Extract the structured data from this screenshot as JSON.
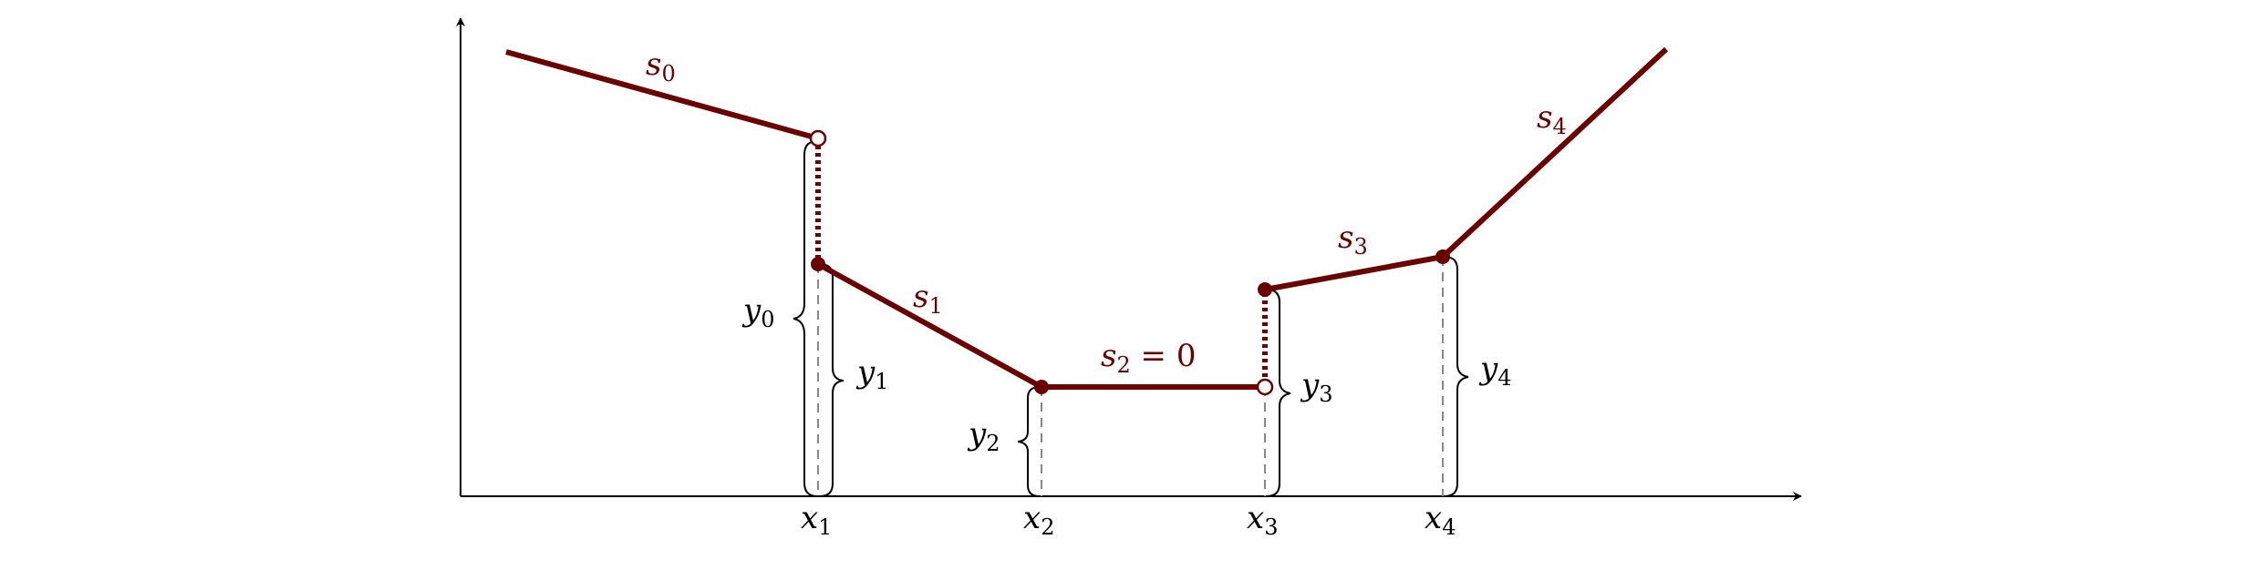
{
  "colors": {
    "curve": "#6b0000",
    "axis": "#000000",
    "guide": "#888888",
    "background": "#ffffff"
  },
  "slope_labels": {
    "s0": {
      "base": "s",
      "sub": "0"
    },
    "s1": {
      "base": "s",
      "sub": "1"
    },
    "s2": {
      "base": "s",
      "sub": "2",
      "suffix": " = 0"
    },
    "s3": {
      "base": "s",
      "sub": "3"
    },
    "s4": {
      "base": "s",
      "sub": "4"
    }
  },
  "x_labels": {
    "x1": {
      "base": "x",
      "sub": "1"
    },
    "x2": {
      "base": "x",
      "sub": "2"
    },
    "x3": {
      "base": "x",
      "sub": "3"
    },
    "x4": {
      "base": "x",
      "sub": "4"
    }
  },
  "y_labels": {
    "y0": {
      "base": "y",
      "sub": "0"
    },
    "y1": {
      "base": "y",
      "sub": "1"
    },
    "y2": {
      "base": "y",
      "sub": "2"
    },
    "y3": {
      "base": "y",
      "sub": "3"
    },
    "y4": {
      "base": "y",
      "sub": "4"
    }
  }
}
